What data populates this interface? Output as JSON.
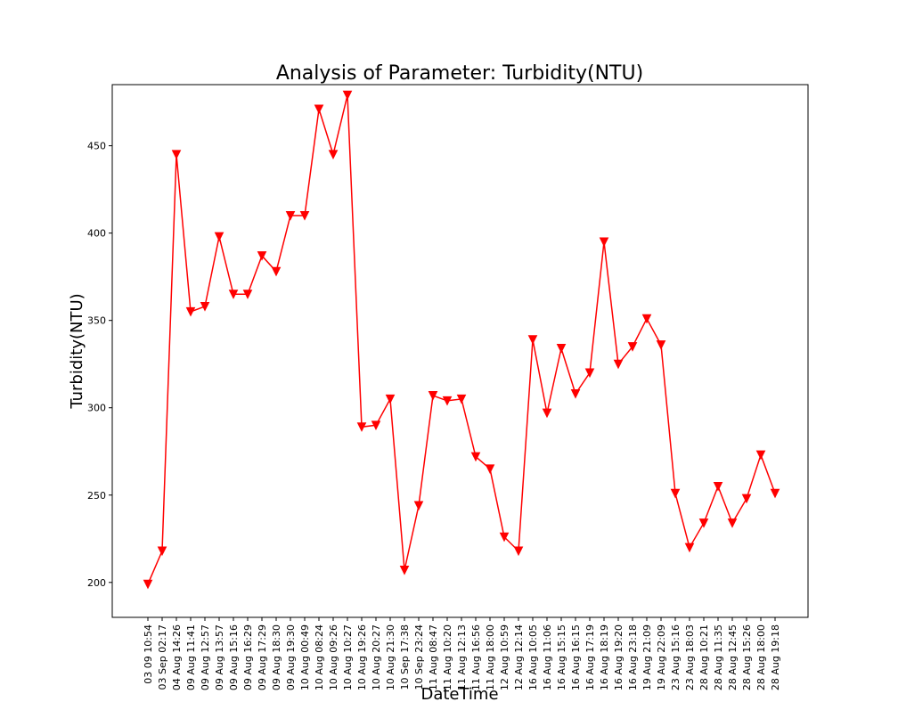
{
  "chart_data": {
    "type": "line",
    "title": "Analysis of Parameter: Turbidity(NTU)",
    "xlabel": "DateTime",
    "ylabel": "Turbidity(NTU)",
    "ylim": [
      180,
      485
    ],
    "yticks": [
      200,
      250,
      300,
      350,
      400,
      450
    ],
    "grid": false,
    "line_color": "#ff0000",
    "marker": "triangle-down",
    "categories": [
      "03 09 10:54",
      "03 Sep 02:17",
      "04 Aug 14:26",
      "09 Aug 11:41",
      "09 Aug 12:57",
      "09 Aug 13:57",
      "09 Aug 15:16",
      "09 Aug 16:29",
      "09 Aug 17:29",
      "09 Aug 18:30",
      "09 Aug 19:30",
      "10 Aug 00:49",
      "10 Aug 08:24",
      "10 Aug 09:26",
      "10 Aug 10:27",
      "10 Aug 19:26",
      "10 Aug 20:27",
      "10 Aug 21:30",
      "10 Sep 17:38",
      "10 Sep 23:24",
      "11 Aug 08:47",
      "11 Aug 10:20",
      "11 Aug 12:13",
      "11 Aug 16:56",
      "11 Aug 18:00",
      "12 Aug 10:59",
      "12 Aug 12:14",
      "16 Aug 10:05",
      "16 Aug 11:06",
      "16 Aug 15:15",
      "16 Aug 16:15",
      "16 Aug 17:19",
      "16 Aug 18:19",
      "16 Aug 19:20",
      "16 Aug 23:18",
      "19 Aug 21:09",
      "19 Aug 22:09",
      "23 Aug 15:16",
      "23 Aug 18:03",
      "28 Aug 10:21",
      "28 Aug 11:35",
      "28 Aug 12:45",
      "28 Aug 15:26",
      "28 Aug 18:00",
      "28 Aug 19:18"
    ],
    "values": [
      199,
      218,
      445,
      355,
      358,
      398,
      365,
      365,
      387,
      378,
      410,
      410,
      471,
      445,
      479,
      289,
      290,
      305,
      207,
      244,
      307,
      304,
      305,
      272,
      265,
      226,
      218,
      339,
      297,
      334,
      308,
      320,
      395,
      325,
      335,
      351,
      336,
      251,
      220,
      234,
      255,
      234,
      248,
      273,
      251
    ]
  }
}
